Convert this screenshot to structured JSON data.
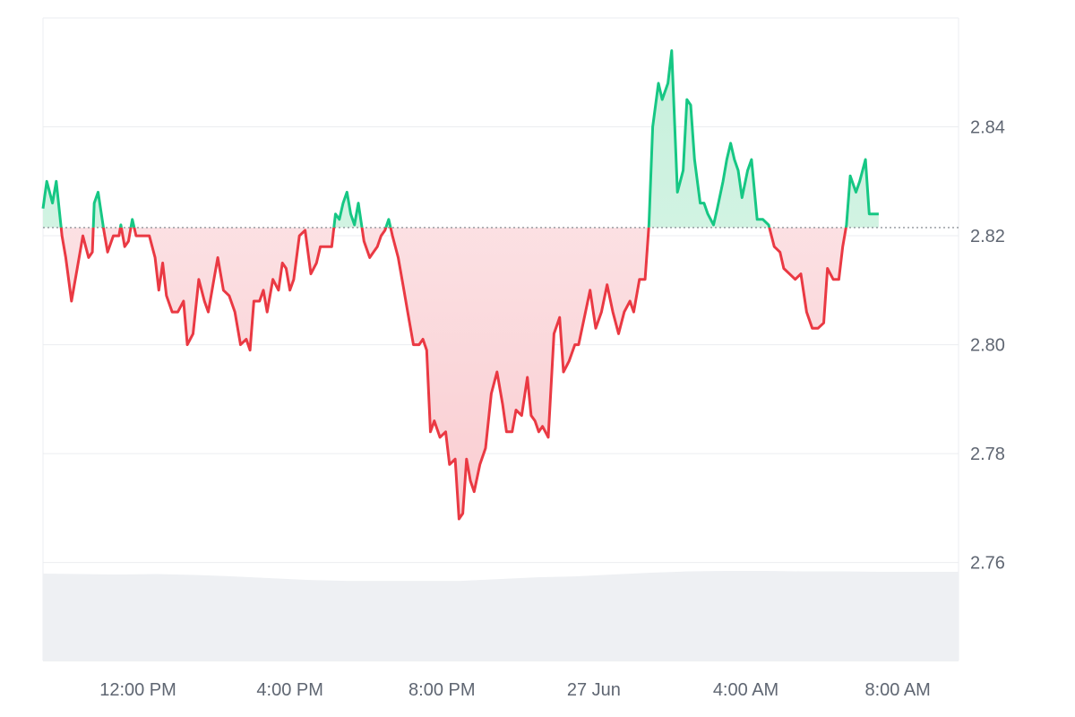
{
  "chart_data": {
    "type": "area",
    "xlabel": "",
    "ylabel": "",
    "ylim": [
      2.742,
      2.86
    ],
    "baseline": 2.8215,
    "grid": true,
    "y_axis_position": "right",
    "y_ticks": [
      2.76,
      2.78,
      2.8,
      2.82,
      2.84
    ],
    "y_tick_labels": [
      "2.76",
      "2.78",
      "2.80",
      "2.82",
      "2.84"
    ],
    "x_ticks": [
      {
        "hours": 2.5,
        "label": "12:00 PM"
      },
      {
        "hours": 6.5,
        "label": "4:00 PM"
      },
      {
        "hours": 10.5,
        "label": "8:00 PM"
      },
      {
        "hours": 14.5,
        "label": "27 Jun"
      },
      {
        "hours": 18.5,
        "label": "4:00 AM"
      },
      {
        "hours": 22.5,
        "label": "8:00 AM"
      }
    ],
    "x_range_hours": [
      0,
      24.1
    ],
    "series": [
      {
        "values": [
          [
            0.0,
            2.825
          ],
          [
            0.1,
            2.83
          ],
          [
            0.25,
            2.826
          ],
          [
            0.35,
            2.83
          ],
          [
            0.5,
            2.82
          ],
          [
            0.6,
            2.816
          ],
          [
            0.75,
            2.808
          ],
          [
            0.9,
            2.814
          ],
          [
            1.05,
            2.82
          ],
          [
            1.2,
            2.816
          ],
          [
            1.3,
            2.817
          ],
          [
            1.35,
            2.826
          ],
          [
            1.45,
            2.828
          ],
          [
            1.6,
            2.821
          ],
          [
            1.7,
            2.817
          ],
          [
            1.85,
            2.82
          ],
          [
            2.0,
            2.82
          ],
          [
            2.05,
            2.822
          ],
          [
            2.15,
            2.818
          ],
          [
            2.25,
            2.819
          ],
          [
            2.35,
            2.823
          ],
          [
            2.45,
            2.82
          ],
          [
            2.55,
            2.82
          ],
          [
            2.7,
            2.82
          ],
          [
            2.8,
            2.82
          ],
          [
            2.95,
            2.816
          ],
          [
            3.05,
            2.81
          ],
          [
            3.15,
            2.815
          ],
          [
            3.25,
            2.809
          ],
          [
            3.4,
            2.806
          ],
          [
            3.55,
            2.806
          ],
          [
            3.7,
            2.808
          ],
          [
            3.8,
            2.8
          ],
          [
            3.95,
            2.802
          ],
          [
            4.1,
            2.812
          ],
          [
            4.25,
            2.808
          ],
          [
            4.35,
            2.806
          ],
          [
            4.5,
            2.812
          ],
          [
            4.6,
            2.816
          ],
          [
            4.75,
            2.81
          ],
          [
            4.9,
            2.809
          ],
          [
            5.05,
            2.806
          ],
          [
            5.2,
            2.8
          ],
          [
            5.35,
            2.801
          ],
          [
            5.45,
            2.799
          ],
          [
            5.55,
            2.808
          ],
          [
            5.7,
            2.808
          ],
          [
            5.8,
            2.81
          ],
          [
            5.9,
            2.806
          ],
          [
            6.05,
            2.812
          ],
          [
            6.2,
            2.81
          ],
          [
            6.3,
            2.815
          ],
          [
            6.4,
            2.814
          ],
          [
            6.5,
            2.81
          ],
          [
            6.6,
            2.812
          ],
          [
            6.75,
            2.82
          ],
          [
            6.9,
            2.821
          ],
          [
            7.05,
            2.813
          ],
          [
            7.2,
            2.815
          ],
          [
            7.3,
            2.818
          ],
          [
            7.45,
            2.818
          ],
          [
            7.6,
            2.818
          ],
          [
            7.7,
            2.824
          ],
          [
            7.8,
            2.823
          ],
          [
            7.9,
            2.826
          ],
          [
            8.0,
            2.828
          ],
          [
            8.1,
            2.824
          ],
          [
            8.2,
            2.822
          ],
          [
            8.3,
            2.826
          ],
          [
            8.45,
            2.819
          ],
          [
            8.6,
            2.816
          ],
          [
            8.7,
            2.817
          ],
          [
            8.8,
            2.818
          ],
          [
            8.9,
            2.82
          ],
          [
            9.0,
            2.821
          ],
          [
            9.1,
            2.823
          ],
          [
            9.2,
            2.82
          ],
          [
            9.35,
            2.816
          ],
          [
            9.5,
            2.81
          ],
          [
            9.6,
            2.806
          ],
          [
            9.75,
            2.8
          ],
          [
            9.9,
            2.8
          ],
          [
            10.0,
            2.801
          ],
          [
            10.1,
            2.799
          ],
          [
            10.2,
            2.784
          ],
          [
            10.3,
            2.786
          ],
          [
            10.45,
            2.783
          ],
          [
            10.6,
            2.784
          ],
          [
            10.7,
            2.778
          ],
          [
            10.85,
            2.779
          ],
          [
            10.95,
            2.768
          ],
          [
            11.05,
            2.769
          ],
          [
            11.15,
            2.779
          ],
          [
            11.25,
            2.775
          ],
          [
            11.35,
            2.773
          ],
          [
            11.5,
            2.778
          ],
          [
            11.65,
            2.781
          ],
          [
            11.8,
            2.791
          ],
          [
            11.95,
            2.795
          ],
          [
            12.1,
            2.789
          ],
          [
            12.2,
            2.784
          ],
          [
            12.35,
            2.784
          ],
          [
            12.45,
            2.788
          ],
          [
            12.6,
            2.787
          ],
          [
            12.75,
            2.794
          ],
          [
            12.85,
            2.787
          ],
          [
            12.95,
            2.786
          ],
          [
            13.05,
            2.784
          ],
          [
            13.15,
            2.785
          ],
          [
            13.3,
            2.783
          ],
          [
            13.45,
            2.802
          ],
          [
            13.6,
            2.805
          ],
          [
            13.7,
            2.795
          ],
          [
            13.85,
            2.797
          ],
          [
            14.0,
            2.8
          ],
          [
            14.1,
            2.8
          ],
          [
            14.25,
            2.805
          ],
          [
            14.4,
            2.81
          ],
          [
            14.55,
            2.803
          ],
          [
            14.7,
            2.806
          ],
          [
            14.85,
            2.811
          ],
          [
            15.0,
            2.806
          ],
          [
            15.15,
            2.802
          ],
          [
            15.3,
            2.806
          ],
          [
            15.45,
            2.808
          ],
          [
            15.55,
            2.806
          ],
          [
            15.7,
            2.812
          ],
          [
            15.85,
            2.812
          ],
          [
            15.95,
            2.822
          ],
          [
            16.05,
            2.84
          ],
          [
            16.2,
            2.848
          ],
          [
            16.3,
            2.845
          ],
          [
            16.45,
            2.848
          ],
          [
            16.55,
            2.854
          ],
          [
            16.7,
            2.828
          ],
          [
            16.85,
            2.832
          ],
          [
            16.95,
            2.845
          ],
          [
            17.05,
            2.844
          ],
          [
            17.15,
            2.834
          ],
          [
            17.3,
            2.826
          ],
          [
            17.4,
            2.826
          ],
          [
            17.5,
            2.824
          ],
          [
            17.65,
            2.822
          ],
          [
            17.75,
            2.825
          ],
          [
            17.9,
            2.83
          ],
          [
            18.0,
            2.834
          ],
          [
            18.1,
            2.837
          ],
          [
            18.2,
            2.834
          ],
          [
            18.3,
            2.832
          ],
          [
            18.4,
            2.827
          ],
          [
            18.55,
            2.832
          ],
          [
            18.65,
            2.834
          ],
          [
            18.8,
            2.823
          ],
          [
            18.95,
            2.823
          ],
          [
            19.1,
            2.822
          ],
          [
            19.25,
            2.818
          ],
          [
            19.4,
            2.817
          ],
          [
            19.5,
            2.814
          ],
          [
            19.65,
            2.813
          ],
          [
            19.8,
            2.812
          ],
          [
            19.95,
            2.813
          ],
          [
            20.1,
            2.806
          ],
          [
            20.25,
            2.803
          ],
          [
            20.4,
            2.803
          ],
          [
            20.55,
            2.804
          ],
          [
            20.65,
            2.814
          ],
          [
            20.8,
            2.812
          ],
          [
            20.95,
            2.812
          ],
          [
            21.05,
            2.818
          ],
          [
            21.15,
            2.822
          ],
          [
            21.25,
            2.831
          ],
          [
            21.4,
            2.828
          ],
          [
            21.5,
            2.83
          ],
          [
            21.65,
            2.834
          ],
          [
            21.75,
            2.824
          ],
          [
            21.85,
            2.824
          ],
          [
            22.0,
            2.824
          ]
        ]
      }
    ],
    "volume_series": [
      [
        0,
        0.96
      ],
      [
        1,
        0.955
      ],
      [
        2,
        0.95
      ],
      [
        3,
        0.955
      ],
      [
        4,
        0.945
      ],
      [
        5,
        0.93
      ],
      [
        6,
        0.91
      ],
      [
        7,
        0.89
      ],
      [
        8,
        0.88
      ],
      [
        9,
        0.88
      ],
      [
        10,
        0.88
      ],
      [
        11,
        0.88
      ],
      [
        12,
        0.9
      ],
      [
        13,
        0.92
      ],
      [
        14,
        0.93
      ],
      [
        15,
        0.95
      ],
      [
        16,
        0.97
      ],
      [
        17,
        0.985
      ],
      [
        18,
        0.99
      ],
      [
        19,
        0.99
      ],
      [
        20,
        0.985
      ],
      [
        21,
        0.985
      ],
      [
        22,
        0.98
      ]
    ],
    "colors": {
      "up_line": "#16c784",
      "up_fill": "#d6f5e7",
      "down_line": "#ea3943",
      "down_fill": "#fce4e6",
      "grid": "#ebedf0",
      "baseline": "#7a7f87",
      "volume": "#eef0f3"
    }
  }
}
